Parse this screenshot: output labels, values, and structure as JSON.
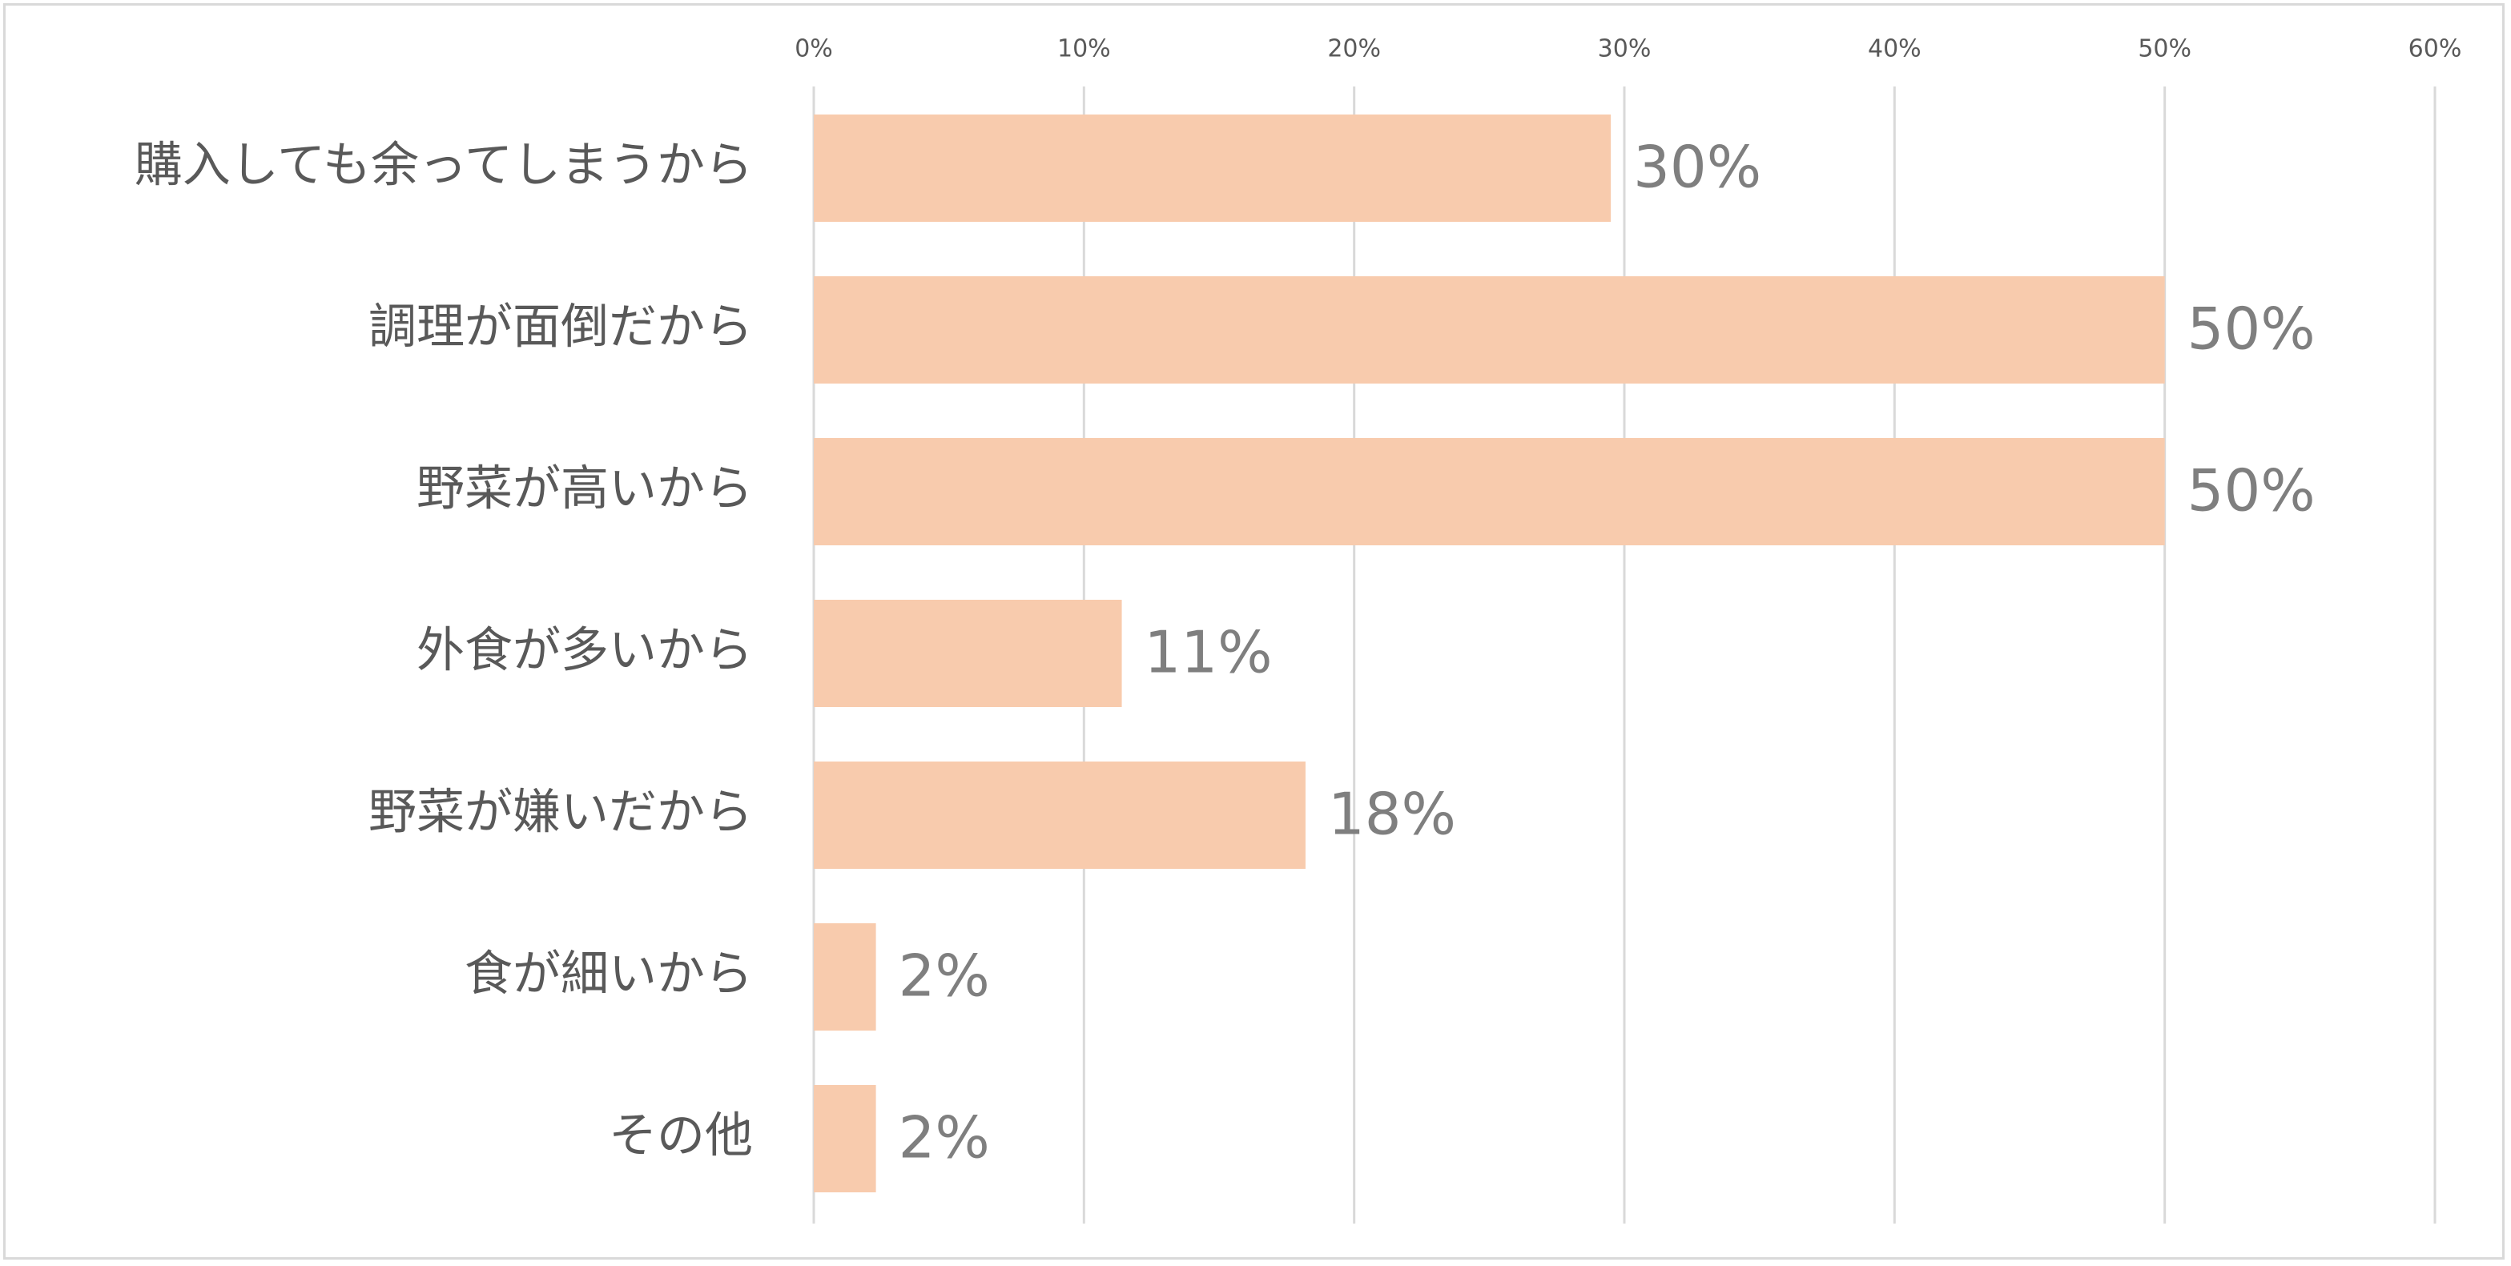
{
  "chart_data": {
    "type": "bar",
    "orientation": "horizontal",
    "categories": [
      "購入しても余ってしまうから",
      "調理が面倒だから",
      "野菜が高いから",
      "外食が多いから",
      "野菜が嫌いだから",
      "食が細いから",
      "その他"
    ],
    "values": [
      29.5,
      50,
      50,
      11.4,
      18.2,
      2.3,
      2.3
    ],
    "data_labels": [
      "30%",
      "50%",
      "50%",
      "11%",
      "18%",
      "2%",
      "2%"
    ],
    "xlim": [
      0,
      60
    ],
    "x_ticks": [
      0,
      10,
      20,
      30,
      40,
      50,
      60
    ],
    "x_tick_labels": [
      "0%",
      "10%",
      "20%",
      "30%",
      "40%",
      "50%",
      "60%"
    ],
    "x_axis_position": "top",
    "grid": true,
    "legend": "none",
    "title": "",
    "xlabel": "",
    "ylabel": "",
    "colors": {
      "bar": "#f8cbad",
      "gridline": "#d9d9d9",
      "category_text": "#595959",
      "tick_text": "#595959",
      "data_label_text": "#7f7f7f",
      "border": "#d9d9d9"
    }
  }
}
